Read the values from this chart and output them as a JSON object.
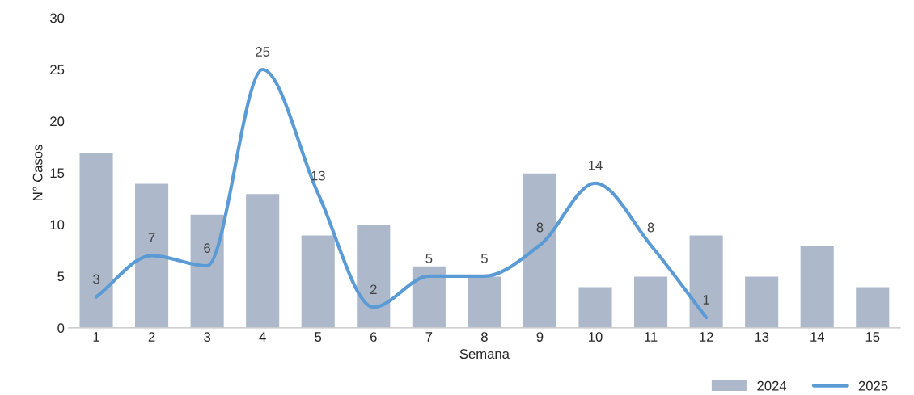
{
  "chart_data": {
    "type": "bar",
    "xlabel": "Semana",
    "ylabel": "N° Casos",
    "categories": [
      "1",
      "2",
      "3",
      "4",
      "5",
      "6",
      "7",
      "8",
      "9",
      "10",
      "11",
      "12",
      "13",
      "14",
      "15"
    ],
    "series": [
      {
        "name": "2024",
        "color": "#adb9ca",
        "values": [
          17,
          14,
          11,
          13,
          9,
          10,
          6,
          5,
          15,
          4,
          5,
          9,
          5,
          8,
          4
        ]
      },
      {
        "name": "2025",
        "type": "line",
        "color": "#5b9bd5",
        "data_labels": true,
        "values": [
          3,
          7,
          6,
          25,
          13,
          2,
          5,
          5,
          8,
          14,
          8,
          1,
          null,
          null,
          null
        ]
      }
    ],
    "ylim": [
      0,
      30
    ],
    "yticks": [
      0,
      5,
      10,
      15,
      20,
      25,
      30
    ],
    "grid": false,
    "legend": "bottom right",
    "marker": "none",
    "line_style": "solid"
  }
}
